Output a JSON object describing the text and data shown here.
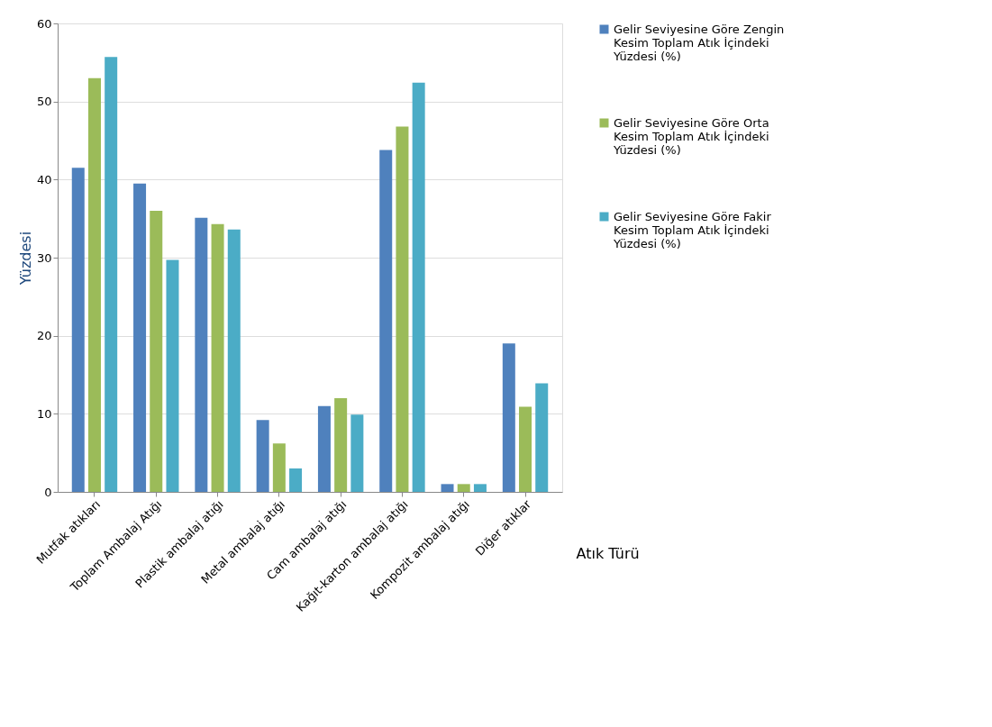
{
  "chart_data": {
    "type": "bar",
    "xlabel": "Atık Türü",
    "ylabel": "Yüzdesi",
    "categories": [
      "Mutfak atıkları",
      "Toplam Ambalaj Atığı",
      "Plastik ambalaj atığı",
      "Metal ambalaj atığı",
      "Cam ambalaj atığı",
      "Kağıt-karton ambalaj atığı",
      "Kompozit ambalaj atığı",
      "Diğer atıklar"
    ],
    "series": [
      {
        "name": "Gelir Seviyesine Göre Zengin Kesim  Toplam Atık İçindeki Yüzdesi (%)",
        "color": "#4f81bd",
        "values": [
          41.5,
          39.5,
          35.1,
          9.2,
          11,
          43.8,
          1,
          19
        ]
      },
      {
        "name": "Gelir Seviyesine Göre Orta Kesim  Toplam Atık İçindeki Yüzdesi (%)",
        "color": "#9bbb59",
        "values": [
          53,
          36,
          34.3,
          6.2,
          12,
          46.8,
          1,
          10.9
        ]
      },
      {
        "name": "Gelir Seviyesine Göre Fakir Kesim  Toplam Atık İçindeki Yüzdesi (%)",
        "color": "#4bacc6",
        "values": [
          55.7,
          29.7,
          33.6,
          3,
          9.9,
          52.4,
          1,
          13.9
        ]
      }
    ],
    "ylim": [
      0,
      60
    ],
    "yticks": [
      0,
      10,
      20,
      30,
      40,
      50,
      60
    ],
    "grid": "y",
    "legend": "right"
  }
}
